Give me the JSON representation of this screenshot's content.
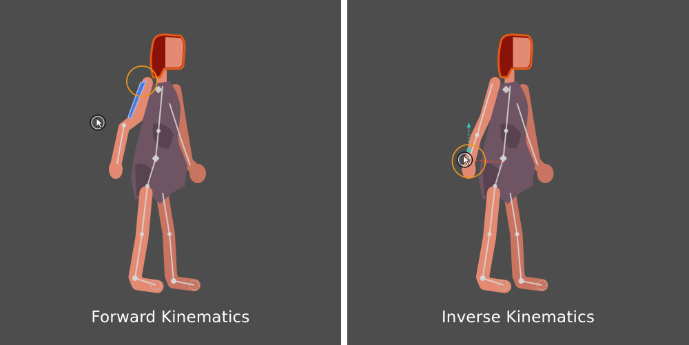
{
  "panels": [
    {
      "caption": "Forward Kinematics",
      "active_bone": "upper-arm",
      "manipulated": "rotation"
    },
    {
      "caption": "Inverse Kinematics",
      "active_bone": "hand-ik-target",
      "manipulated": "ik-goal"
    }
  ],
  "colors": {
    "background": "#4d4d4d",
    "divider": "#ffffff",
    "skin": "#e48a73",
    "hair": "#8b1208",
    "hair_outline": "#e25a16",
    "dress": "#6f5563",
    "bone": "#d9d9d9",
    "selected_bone": "#4a78d8",
    "gizmo_ring": "#e8951f",
    "cursor": "#1a1a1a",
    "ik_axis_x": "#e04a3a",
    "ik_axis_y": "#36c8b8"
  },
  "icons": [
    "cursor-icon",
    "rotation-gizmo-icon",
    "ik-target-icon"
  ]
}
